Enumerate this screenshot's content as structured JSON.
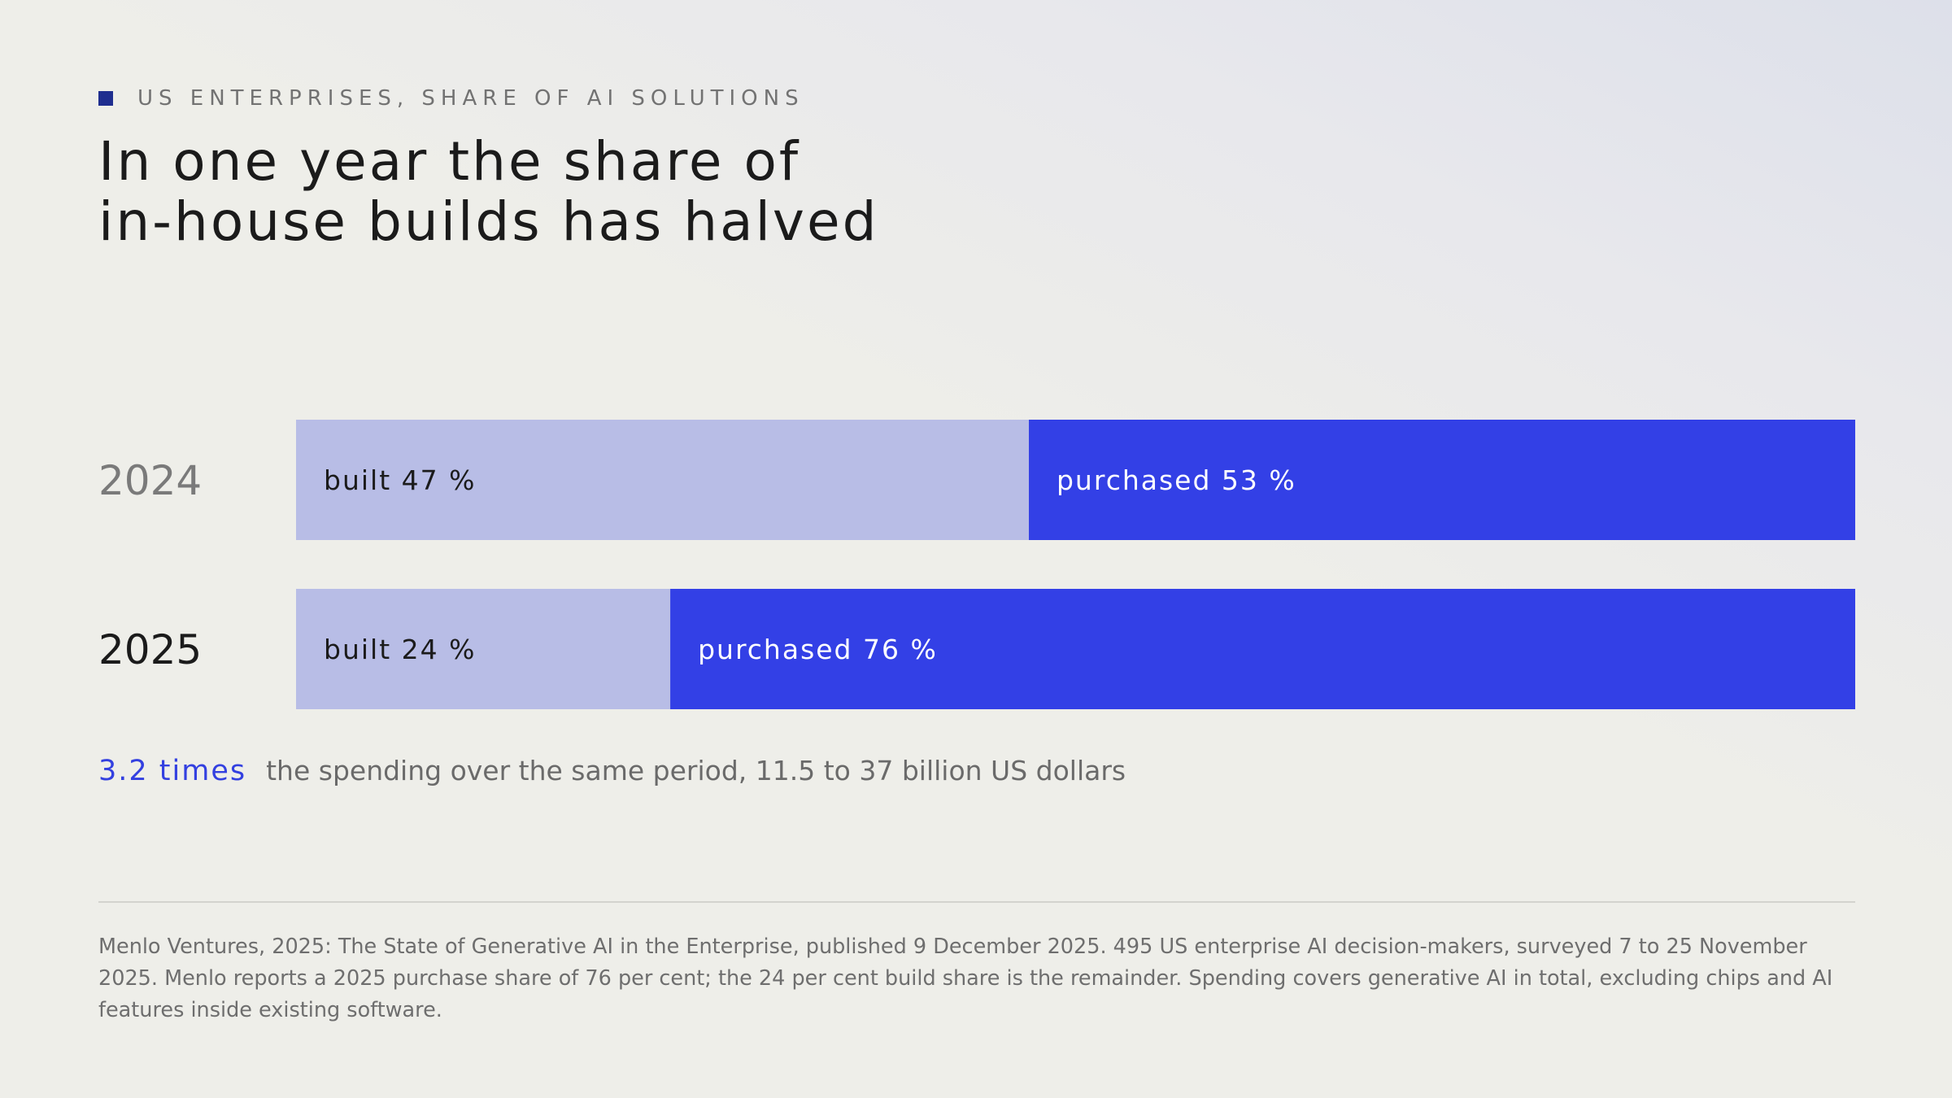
{
  "kicker": "US ENTERPRISES, SHARE OF AI SOLUTIONS",
  "title_lines": [
    "In one year the share of",
    "in-house builds has halved"
  ],
  "chart_data": {
    "type": "bar",
    "orientation": "horizontal",
    "stacked": true,
    "categories": [
      "2024",
      "2025"
    ],
    "series": [
      {
        "name": "built",
        "values": [
          47,
          24
        ],
        "labels": [
          "built 47 %",
          "built 24 %"
        ],
        "color": "#b8bde6",
        "label_color": "#1b1b1b"
      },
      {
        "name": "purchased",
        "values": [
          53,
          76
        ],
        "labels": [
          "purchased 53 %",
          "purchased 76 %"
        ],
        "color": "#3340e6",
        "label_color": "#ffffff"
      }
    ],
    "xlim": [
      0,
      100
    ],
    "category_colors": [
      "#7a7a7a",
      "#1b1b1b"
    ],
    "grid": false
  },
  "callout": {
    "highlight": "3.2 times",
    "text": "the spending over the same period, 11.5 to 37 billion US dollars"
  },
  "source": "Menlo Ventures, 2025: The State of Generative AI in the Enterprise, published 9 December 2025. 495 US enterprise AI decision-makers, surveyed 7 to 25 November 2025. Menlo reports a 2025 purchase share of 76 per cent; the 24 per cent build share is the remainder. Spending covers generative AI in total, excluding chips and AI features inside existing software.",
  "colors": {
    "accent": "#3340e6",
    "accent_light": "#b8bde6",
    "kicker_square": "#1f2e8f"
  }
}
